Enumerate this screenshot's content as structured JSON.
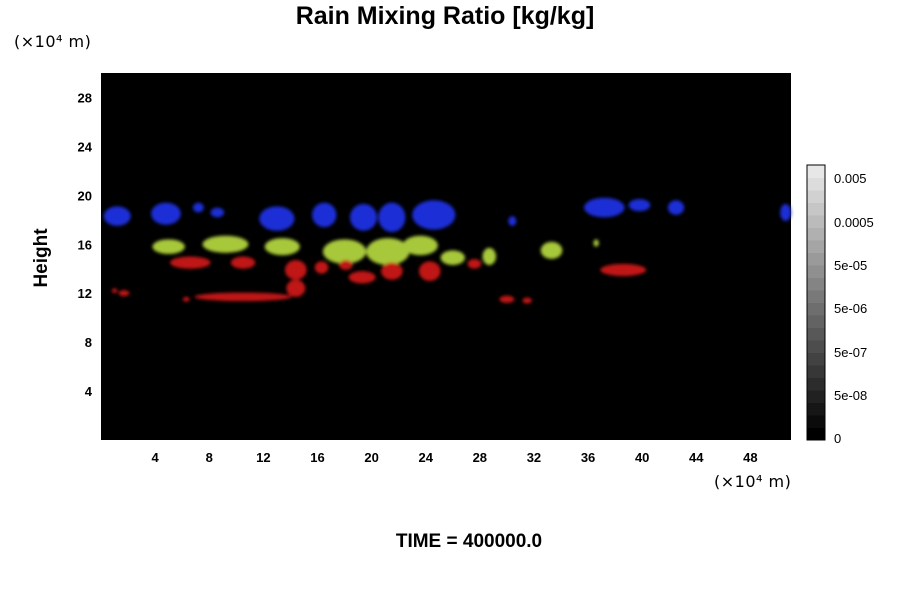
{
  "chart_data": {
    "type": "heatmap",
    "title": "Rain Mixing Ratio [kg/kg]",
    "ylabel": "Height",
    "xunit": "(×10⁴ m)",
    "yunit": "(×10⁴ m)",
    "xlim": [
      0,
      51
    ],
    "ylim": [
      0,
      30
    ],
    "xticks": [
      4,
      8,
      12,
      16,
      20,
      24,
      28,
      32,
      36,
      40,
      44,
      48
    ],
    "yticks": [
      4,
      8,
      12,
      16,
      20,
      24,
      28
    ],
    "colorbar": {
      "labels": [
        "0.005",
        "0.0005",
        "5e-05",
        "5e-06",
        "5e-07",
        "5e-08",
        "0"
      ],
      "colors": [
        "#000000",
        "#0b0b0b",
        "#161616",
        "#212121",
        "#2c2c2c",
        "#373737",
        "#424242",
        "#4d4d4d",
        "#585858",
        "#636363",
        "#6e6e6e",
        "#797979",
        "#848484",
        "#8f8f8f",
        "#9a9a9a",
        "#a5a5a5",
        "#b0b0b0",
        "#bbbbbb",
        "#c6c6c6",
        "#d1d1d1",
        "#dcdcdc",
        "#e7e7e7"
      ]
    },
    "colors": {
      "blue": "#1a2fd6",
      "green_yellow": "#a8c83a",
      "red": "#c01818"
    },
    "features": [
      {
        "color": "blue",
        "x": 1.2,
        "y": 18.3,
        "rx": 1.0,
        "ry": 0.8
      },
      {
        "color": "blue",
        "x": 4.8,
        "y": 18.5,
        "rx": 1.1,
        "ry": 0.9
      },
      {
        "color": "blue",
        "x": 7.2,
        "y": 19.0,
        "rx": 0.4,
        "ry": 0.4
      },
      {
        "color": "blue",
        "x": 8.6,
        "y": 18.6,
        "rx": 0.5,
        "ry": 0.4
      },
      {
        "color": "blue",
        "x": 13.0,
        "y": 18.1,
        "rx": 1.3,
        "ry": 1.0
      },
      {
        "color": "blue",
        "x": 16.5,
        "y": 18.4,
        "rx": 0.9,
        "ry": 1.0
      },
      {
        "color": "blue",
        "x": 19.4,
        "y": 18.2,
        "rx": 1.0,
        "ry": 1.1
      },
      {
        "color": "blue",
        "x": 21.5,
        "y": 18.2,
        "rx": 1.0,
        "ry": 1.2
      },
      {
        "color": "blue",
        "x": 24.6,
        "y": 18.4,
        "rx": 1.6,
        "ry": 1.2
      },
      {
        "color": "blue",
        "x": 30.4,
        "y": 17.9,
        "rx": 0.3,
        "ry": 0.4
      },
      {
        "color": "blue",
        "x": 37.2,
        "y": 19.0,
        "rx": 1.5,
        "ry": 0.8
      },
      {
        "color": "blue",
        "x": 39.8,
        "y": 19.2,
        "rx": 0.8,
        "ry": 0.5
      },
      {
        "color": "blue",
        "x": 42.5,
        "y": 19.0,
        "rx": 0.6,
        "ry": 0.6
      },
      {
        "color": "blue",
        "x": 50.6,
        "y": 18.6,
        "rx": 0.4,
        "ry": 0.7
      },
      {
        "color": "green_yellow",
        "x": 5.0,
        "y": 15.8,
        "rx": 1.2,
        "ry": 0.6
      },
      {
        "color": "green_yellow",
        "x": 9.2,
        "y": 16.0,
        "rx": 1.7,
        "ry": 0.7
      },
      {
        "color": "green_yellow",
        "x": 13.4,
        "y": 15.8,
        "rx": 1.3,
        "ry": 0.7
      },
      {
        "color": "green_yellow",
        "x": 18.0,
        "y": 15.4,
        "rx": 1.6,
        "ry": 1.0
      },
      {
        "color": "green_yellow",
        "x": 21.2,
        "y": 15.4,
        "rx": 1.6,
        "ry": 1.1
      },
      {
        "color": "green_yellow",
        "x": 23.6,
        "y": 15.9,
        "rx": 1.3,
        "ry": 0.8
      },
      {
        "color": "green_yellow",
        "x": 26.0,
        "y": 14.9,
        "rx": 0.9,
        "ry": 0.6
      },
      {
        "color": "green_yellow",
        "x": 28.7,
        "y": 15.0,
        "rx": 0.5,
        "ry": 0.7
      },
      {
        "color": "green_yellow",
        "x": 33.3,
        "y": 15.5,
        "rx": 0.8,
        "ry": 0.7
      },
      {
        "color": "green_yellow",
        "x": 36.6,
        "y": 16.1,
        "rx": 0.2,
        "ry": 0.3
      },
      {
        "color": "red",
        "x": 6.6,
        "y": 14.5,
        "rx": 1.5,
        "ry": 0.5
      },
      {
        "color": "red",
        "x": 10.5,
        "y": 14.5,
        "rx": 0.9,
        "ry": 0.5
      },
      {
        "color": "red",
        "x": 14.4,
        "y": 13.9,
        "rx": 0.8,
        "ry": 0.8
      },
      {
        "color": "red",
        "x": 16.3,
        "y": 14.1,
        "rx": 0.5,
        "ry": 0.5
      },
      {
        "color": "red",
        "x": 18.1,
        "y": 14.3,
        "rx": 0.5,
        "ry": 0.4
      },
      {
        "color": "red",
        "x": 19.3,
        "y": 13.3,
        "rx": 1.0,
        "ry": 0.5
      },
      {
        "color": "red",
        "x": 21.5,
        "y": 13.8,
        "rx": 0.8,
        "ry": 0.7
      },
      {
        "color": "red",
        "x": 24.3,
        "y": 13.8,
        "rx": 0.8,
        "ry": 0.8
      },
      {
        "color": "red",
        "x": 27.6,
        "y": 14.4,
        "rx": 0.5,
        "ry": 0.4
      },
      {
        "color": "red",
        "x": 38.6,
        "y": 13.9,
        "rx": 1.7,
        "ry": 0.5
      },
      {
        "color": "red",
        "x": 1.7,
        "y": 12.0,
        "rx": 0.4,
        "ry": 0.25
      },
      {
        "color": "red",
        "x": 1.0,
        "y": 12.2,
        "rx": 0.2,
        "ry": 0.2
      },
      {
        "color": "red",
        "x": 6.3,
        "y": 11.5,
        "rx": 0.25,
        "ry": 0.2
      },
      {
        "color": "red",
        "x": 10.5,
        "y": 11.7,
        "rx": 3.6,
        "ry": 0.35
      },
      {
        "color": "red",
        "x": 14.4,
        "y": 12.4,
        "rx": 0.7,
        "ry": 0.7
      },
      {
        "color": "red",
        "x": 30.0,
        "y": 11.5,
        "rx": 0.55,
        "ry": 0.3
      },
      {
        "color": "red",
        "x": 31.5,
        "y": 11.4,
        "rx": 0.35,
        "ry": 0.25
      }
    ]
  },
  "footer": {
    "time_label": "TIME = 400000.0"
  }
}
